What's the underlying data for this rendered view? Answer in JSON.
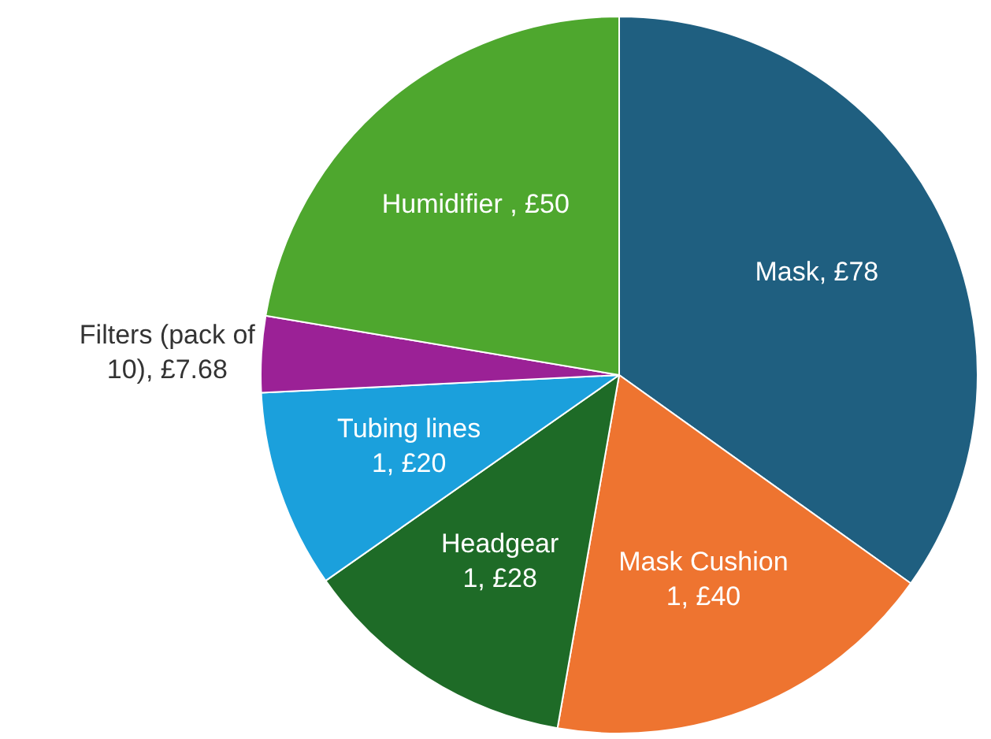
{
  "chart_data": {
    "type": "pie",
    "categories": [
      "Mask",
      "Mask Cushion 1",
      "Headgear 1",
      "Tubing lines 1",
      "Filters (pack of 10)",
      "Humidifier "
    ],
    "values": [
      78,
      40,
      28,
      20,
      7.68,
      50
    ],
    "value_labels": [
      "£78",
      "£40",
      "£28",
      "£20",
      "£7.68",
      "£50"
    ],
    "colors": [
      "#1f5f80",
      "#ee7430",
      "#1e6b27",
      "#1ba0dc",
      "#9b2196",
      "#4ea72e"
    ],
    "legend": false
  }
}
